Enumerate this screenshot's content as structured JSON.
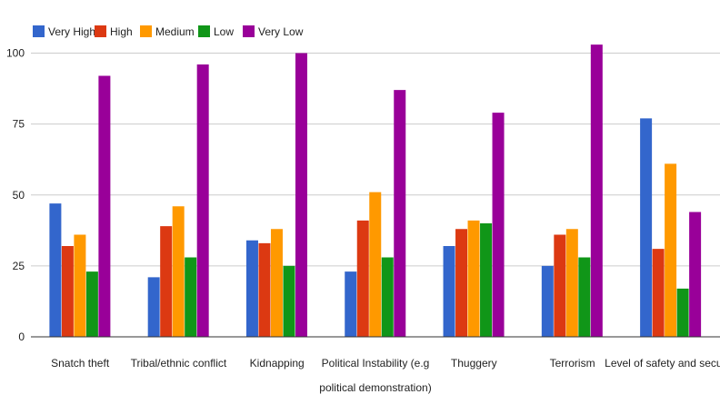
{
  "chart_data": {
    "type": "bar",
    "categories": [
      [
        "Snatch theft"
      ],
      [
        "Tribal/ethnic conflict"
      ],
      [
        "Kidnapping"
      ],
      [
        "Political Instability (e.g",
        "political demonstration)"
      ],
      [
        "Thuggery"
      ],
      [
        "Terrorism"
      ],
      [
        "Level of safety and security"
      ]
    ],
    "series": [
      {
        "name": "Very High",
        "color": "#3366cc",
        "values": [
          47,
          21,
          34,
          23,
          32,
          25,
          77
        ]
      },
      {
        "name": "High",
        "color": "#dc3912",
        "values": [
          32,
          39,
          33,
          41,
          38,
          36,
          31
        ]
      },
      {
        "name": "Medium",
        "color": "#ff9900",
        "values": [
          36,
          46,
          38,
          51,
          41,
          38,
          61
        ]
      },
      {
        "name": "Low",
        "color": "#109618",
        "values": [
          23,
          28,
          25,
          28,
          40,
          28,
          17
        ]
      },
      {
        "name": "Very Low",
        "color": "#990099",
        "values": [
          92,
          96,
          100,
          87,
          79,
          103,
          44
        ]
      }
    ],
    "y_ticks": [
      0,
      25,
      50,
      75,
      100
    ],
    "ylim": [
      0,
      104
    ],
    "grid": true,
    "legend_position": "top-left"
  }
}
